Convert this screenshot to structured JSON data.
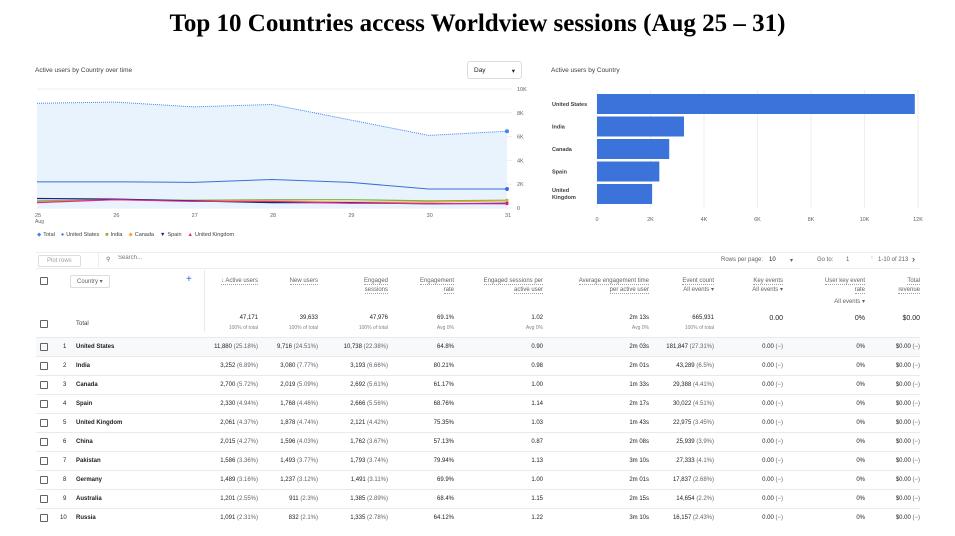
{
  "title": "Top 10 Countries access Worldview sessions (Aug 25 – 31)",
  "line_chart": {
    "title": "Active users by Country over time",
    "granularity": "Day",
    "x_ticks": [
      "25",
      "26",
      "27",
      "28",
      "29",
      "30",
      "31"
    ],
    "x_sub": "Aug",
    "y_ticks": [
      "0",
      "2K",
      "4K",
      "6K",
      "8K",
      "10K"
    ],
    "ylim": [
      0,
      10000
    ],
    "series": [
      {
        "name": "Total",
        "color": "#4285f4",
        "values": [
          8800,
          8900,
          8500,
          8700,
          7400,
          6100,
          6450
        ]
      },
      {
        "name": "United States",
        "color": "#3b6fd8",
        "values": [
          2200,
          2200,
          2150,
          2400,
          2150,
          1600,
          1600
        ]
      },
      {
        "name": "India",
        "color": "#7cb342",
        "values": [
          600,
          700,
          650,
          700,
          700,
          600,
          650
        ]
      },
      {
        "name": "Canada",
        "color": "#f2a93b",
        "values": [
          500,
          700,
          600,
          600,
          500,
          500,
          600
        ]
      },
      {
        "name": "Spain",
        "color": "#1a237e",
        "values": [
          800,
          750,
          600,
          450,
          450,
          350,
          400
        ]
      },
      {
        "name": "United Kingdom",
        "color": "#e52592",
        "values": [
          450,
          700,
          550,
          550,
          400,
          380,
          350
        ]
      }
    ]
  },
  "bar_chart": {
    "type": "bar",
    "title": "Active users by Country",
    "categories": [
      "United States",
      "India",
      "Canada",
      "Spain",
      "United Kingdom"
    ],
    "values": [
      11880,
      3252,
      2700,
      2330,
      2061
    ],
    "x_ticks": [
      "0",
      "2K",
      "4K",
      "6K",
      "8K",
      "10K",
      "12K"
    ],
    "xlim": [
      0,
      12000
    ],
    "color": "#3b73db"
  },
  "toolbar": {
    "plot_rows": "Plot rows",
    "search_placeholder": "Search...",
    "rows_per_page_label": "Rows per page:",
    "rows_per_page": "10",
    "goto_label": "Go to:",
    "goto": "1",
    "range": "1-10 of 213"
  },
  "table": {
    "dimension": "Country",
    "headers": [
      [
        "↓ Active users",
        ""
      ],
      [
        "New users",
        ""
      ],
      [
        "Engaged",
        "sessions"
      ],
      [
        "Engagement",
        "rate"
      ],
      [
        "Engaged sessions per",
        "active user"
      ],
      [
        "Average engagement time",
        "per active user"
      ],
      [
        "Event count",
        "All events ▾"
      ],
      [
        "Key events",
        "All events ▾"
      ],
      [
        "User key event",
        "rate"
      ],
      [
        "Total",
        "revenue"
      ]
    ],
    "ukr_filter": "All events ▾",
    "total": {
      "label": "Total",
      "values": [
        "47,171",
        "39,633",
        "47,976",
        "69.1%",
        "1.02",
        "2m 13s",
        "665,931",
        "0.00",
        "0%",
        "$0.00"
      ],
      "subs": [
        "100% of total",
        "100% of total",
        "100% of total",
        "Avg 0%",
        "Avg 0%",
        "Avg 0%",
        "100% of total",
        "",
        "",
        ""
      ]
    },
    "rows": [
      {
        "rank": "1",
        "country": "United States",
        "v": [
          [
            "11,880",
            "(25.18%)"
          ],
          [
            "9,716",
            "(24.51%)"
          ],
          [
            "10,738",
            "(22.38%)"
          ],
          [
            "64.8%",
            ""
          ],
          [
            "0.90",
            ""
          ],
          [
            "2m 03s",
            ""
          ],
          [
            "181,847",
            "(27.31%)"
          ],
          [
            "0.00",
            "(−)"
          ],
          [
            "0%",
            ""
          ],
          [
            "$0.00",
            "(−)"
          ]
        ]
      },
      {
        "rank": "2",
        "country": "India",
        "v": [
          [
            "3,252",
            "(6.89%)"
          ],
          [
            "3,080",
            "(7.77%)"
          ],
          [
            "3,193",
            "(6.66%)"
          ],
          [
            "80.21%",
            ""
          ],
          [
            "0.98",
            ""
          ],
          [
            "2m 01s",
            ""
          ],
          [
            "43,289",
            "(6.5%)"
          ],
          [
            "0.00",
            "(−)"
          ],
          [
            "0%",
            ""
          ],
          [
            "$0.00",
            "(−)"
          ]
        ]
      },
      {
        "rank": "3",
        "country": "Canada",
        "v": [
          [
            "2,700",
            "(5.72%)"
          ],
          [
            "2,019",
            "(5.09%)"
          ],
          [
            "2,692",
            "(5.61%)"
          ],
          [
            "61.17%",
            ""
          ],
          [
            "1.00",
            ""
          ],
          [
            "1m 33s",
            ""
          ],
          [
            "29,388",
            "(4.41%)"
          ],
          [
            "0.00",
            "(−)"
          ],
          [
            "0%",
            ""
          ],
          [
            "$0.00",
            "(−)"
          ]
        ]
      },
      {
        "rank": "4",
        "country": "Spain",
        "v": [
          [
            "2,330",
            "(4.94%)"
          ],
          [
            "1,768",
            "(4.46%)"
          ],
          [
            "2,666",
            "(5.56%)"
          ],
          [
            "68.76%",
            ""
          ],
          [
            "1.14",
            ""
          ],
          [
            "2m 17s",
            ""
          ],
          [
            "30,022",
            "(4.51%)"
          ],
          [
            "0.00",
            "(−)"
          ],
          [
            "0%",
            ""
          ],
          [
            "$0.00",
            "(−)"
          ]
        ]
      },
      {
        "rank": "5",
        "country": "United Kingdom",
        "v": [
          [
            "2,061",
            "(4.37%)"
          ],
          [
            "1,878",
            "(4.74%)"
          ],
          [
            "2,121",
            "(4.42%)"
          ],
          [
            "75.35%",
            ""
          ],
          [
            "1.03",
            ""
          ],
          [
            "1m 43s",
            ""
          ],
          [
            "22,975",
            "(3.45%)"
          ],
          [
            "0.00",
            "(−)"
          ],
          [
            "0%",
            ""
          ],
          [
            "$0.00",
            "(−)"
          ]
        ]
      },
      {
        "rank": "6",
        "country": "China",
        "v": [
          [
            "2,015",
            "(4.27%)"
          ],
          [
            "1,596",
            "(4.03%)"
          ],
          [
            "1,762",
            "(3.67%)"
          ],
          [
            "57.13%",
            ""
          ],
          [
            "0.87",
            ""
          ],
          [
            "2m 08s",
            ""
          ],
          [
            "25,939",
            "(3.9%)"
          ],
          [
            "0.00",
            "(−)"
          ],
          [
            "0%",
            ""
          ],
          [
            "$0.00",
            "(−)"
          ]
        ]
      },
      {
        "rank": "7",
        "country": "Pakistan",
        "v": [
          [
            "1,586",
            "(3.36%)"
          ],
          [
            "1,493",
            "(3.77%)"
          ],
          [
            "1,793",
            "(3.74%)"
          ],
          [
            "79.94%",
            ""
          ],
          [
            "1.13",
            ""
          ],
          [
            "3m 10s",
            ""
          ],
          [
            "27,333",
            "(4.1%)"
          ],
          [
            "0.00",
            "(−)"
          ],
          [
            "0%",
            ""
          ],
          [
            "$0.00",
            "(−)"
          ]
        ]
      },
      {
        "rank": "8",
        "country": "Germany",
        "v": [
          [
            "1,489",
            "(3.16%)"
          ],
          [
            "1,237",
            "(3.12%)"
          ],
          [
            "1,491",
            "(3.11%)"
          ],
          [
            "69.9%",
            ""
          ],
          [
            "1.00",
            ""
          ],
          [
            "2m 01s",
            ""
          ],
          [
            "17,837",
            "(2.68%)"
          ],
          [
            "0.00",
            "(−)"
          ],
          [
            "0%",
            ""
          ],
          [
            "$0.00",
            "(−)"
          ]
        ]
      },
      {
        "rank": "9",
        "country": "Australia",
        "v": [
          [
            "1,201",
            "(2.55%)"
          ],
          [
            "911",
            "(2.3%)"
          ],
          [
            "1,385",
            "(2.89%)"
          ],
          [
            "68.4%",
            ""
          ],
          [
            "1.15",
            ""
          ],
          [
            "2m 15s",
            ""
          ],
          [
            "14,654",
            "(2.2%)"
          ],
          [
            "0.00",
            "(−)"
          ],
          [
            "0%",
            ""
          ],
          [
            "$0.00",
            "(−)"
          ]
        ]
      },
      {
        "rank": "10",
        "country": "Russia",
        "v": [
          [
            "1,091",
            "(2.31%)"
          ],
          [
            "832",
            "(2.1%)"
          ],
          [
            "1,335",
            "(2.78%)"
          ],
          [
            "64.12%",
            ""
          ],
          [
            "1.22",
            ""
          ],
          [
            "3m 10s",
            ""
          ],
          [
            "16,157",
            "(2.43%)"
          ],
          [
            "0.00",
            "(−)"
          ],
          [
            "0%",
            ""
          ],
          [
            "$0.00",
            "(−)"
          ]
        ]
      }
    ]
  }
}
